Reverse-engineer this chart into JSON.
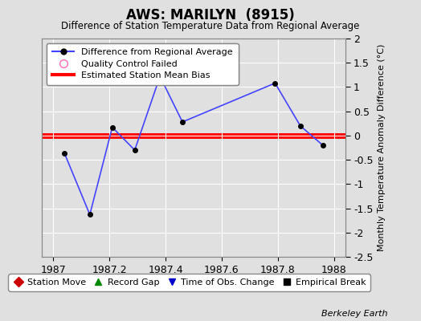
{
  "title": "AWS: MARILYN  (8915)",
  "subtitle": "Difference of Station Temperature Data from Regional Average",
  "ylabel_right": "Monthly Temperature Anomaly Difference (°C)",
  "footer": "Berkeley Earth",
  "xlim": [
    1986.96,
    1988.04
  ],
  "ylim": [
    -2.5,
    2.0
  ],
  "yticks": [
    -2.5,
    -2.0,
    -1.5,
    -1.0,
    -0.5,
    0.0,
    0.5,
    1.0,
    1.5,
    2.0
  ],
  "ytick_labels": [
    "-2.5",
    "-2",
    "-1.5",
    "-1",
    "-0.5",
    "0",
    "0.5",
    "1",
    "1.5",
    "2"
  ],
  "xticks": [
    1987.0,
    1987.2,
    1987.4,
    1987.6,
    1987.8,
    1988.0
  ],
  "xtick_labels": [
    "1987",
    "1987.2",
    "1987.4",
    "1987.6",
    "1987.8",
    "1988"
  ],
  "bias_value": 0.0,
  "data_x": [
    1987.04,
    1987.13,
    1987.21,
    1987.29,
    1987.38,
    1987.46,
    1987.79,
    1987.88,
    1987.96
  ],
  "data_y": [
    -0.37,
    -1.63,
    0.17,
    -0.3,
    1.22,
    0.28,
    1.08,
    0.2,
    -0.2
  ],
  "line_color": "#4444ff",
  "marker_color": "#000000",
  "bias_color": "#ff0000",
  "background_color": "#e0e0e0",
  "grid_color": "#ffffff",
  "legend1_items": [
    {
      "label": "Difference from Regional Average"
    },
    {
      "label": "Quality Control Failed"
    },
    {
      "label": "Estimated Station Mean Bias"
    }
  ],
  "legend2_items": [
    {
      "label": "Station Move",
      "color": "#cc0000",
      "marker": "D"
    },
    {
      "label": "Record Gap",
      "color": "#008800",
      "marker": "^"
    },
    {
      "label": "Time of Obs. Change",
      "color": "#0000cc",
      "marker": "v"
    },
    {
      "label": "Empirical Break",
      "color": "#000000",
      "marker": "s"
    }
  ]
}
